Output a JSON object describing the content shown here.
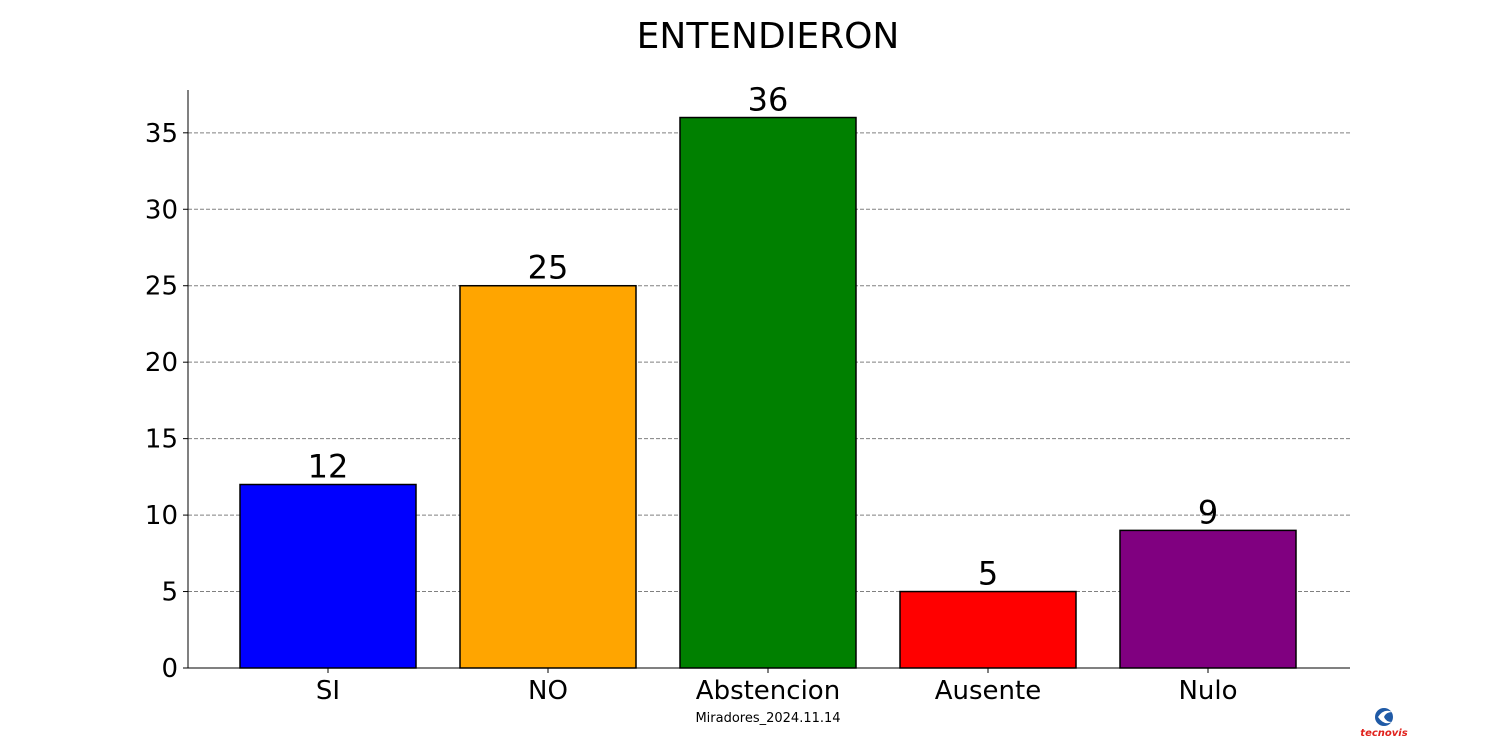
{
  "chart_data": {
    "type": "bar",
    "title": "ENTENDIERON",
    "categories": [
      "SI",
      "NO",
      "Abstencion",
      "Ausente",
      "Nulo"
    ],
    "values": [
      12,
      25,
      36,
      5,
      9
    ],
    "colors": [
      "#0000ff",
      "#ffa500",
      "#008000",
      "#ff0000",
      "#800080"
    ],
    "ylim": [
      0,
      37.8
    ],
    "yticks": [
      0,
      5,
      10,
      15,
      20,
      25,
      30,
      35
    ],
    "grid": "horizontal dashed",
    "caption": "Miradores_2024.11.14"
  },
  "logo": {
    "text": "tecnovis",
    "name": "tecnovis-logo"
  }
}
